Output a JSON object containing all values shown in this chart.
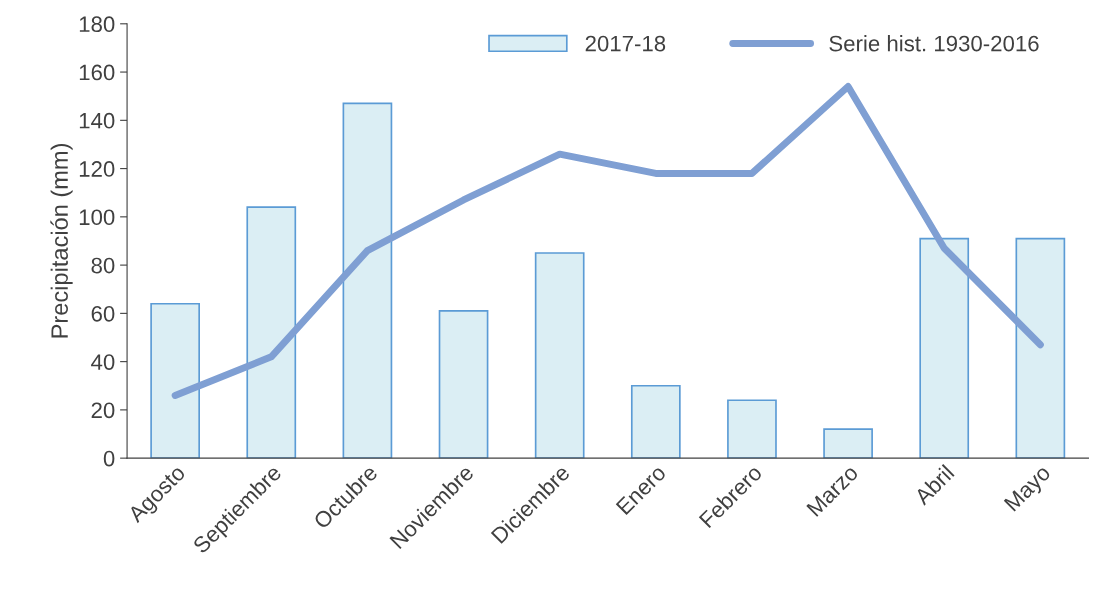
{
  "chart_data": {
    "type": "bar",
    "ylabel": "Precipitación (mm)",
    "categories": [
      "Agosto",
      "Septiembre",
      "Octubre",
      "Noviembre",
      "Diciembre",
      "Enero",
      "Febrero",
      "Marzo",
      "Abril",
      "Mayo"
    ],
    "series": [
      {
        "name": "2017-18",
        "color": "#dbeef4",
        "values": [
          64,
          104,
          147,
          61,
          85,
          30,
          24,
          12,
          91,
          91
        ]
      },
      {
        "name": "Serie hist. 1930-2016",
        "type": "line",
        "color": "#7f9fd3",
        "values": [
          26,
          42,
          86,
          107,
          126,
          118,
          118,
          154,
          87,
          47
        ]
      }
    ],
    "ylim": [
      0,
      180
    ],
    "yticks": [
      0,
      20,
      40,
      60,
      80,
      100,
      120,
      140,
      160,
      180
    ],
    "grid": false,
    "legend": "top right",
    "marker": "none",
    "line_style": "solid"
  }
}
